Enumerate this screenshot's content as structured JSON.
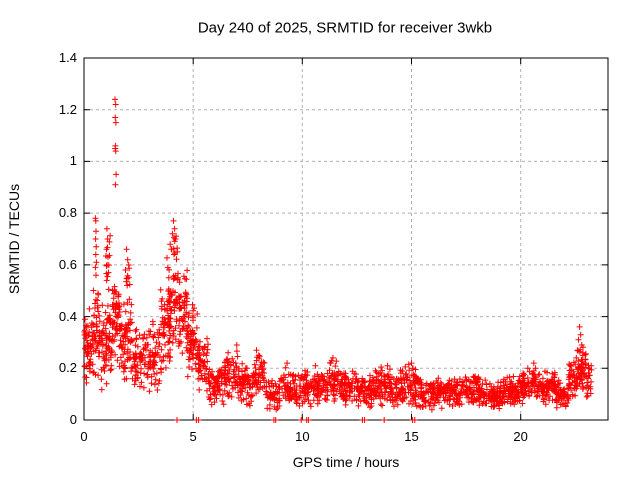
{
  "chart_data": {
    "type": "scatter",
    "title": "Day 240 of 2025, SRMTID for receiver 3wkb",
    "xlabel": "GPS time / hours",
    "ylabel": "SRMTID / TECUs",
    "xlim": [
      0,
      24
    ],
    "ylim": [
      0,
      1.4
    ],
    "x_ticks": [
      0,
      5,
      10,
      15,
      20
    ],
    "y_ticks": [
      0,
      0.2,
      0.4,
      0.6,
      0.8,
      1,
      1.2,
      1.4
    ],
    "grid": "dashed",
    "legend": "none",
    "marker": {
      "symbol": "plus",
      "color": "#ff0000",
      "size": 7
    },
    "grid_color": "#b0b0b0",
    "axis_color": "#000000",
    "background_color": "#ffffff",
    "seed": 42,
    "points": [
      [
        1.42,
        1.24
      ],
      [
        1.45,
        1.22
      ],
      [
        1.43,
        1.17
      ],
      [
        1.46,
        1.15
      ],
      [
        1.44,
        1.06
      ],
      [
        1.45,
        1.04
      ],
      [
        1.43,
        1.05
      ],
      [
        1.47,
        0.95
      ],
      [
        1.44,
        0.91
      ],
      [
        0.52,
        0.78
      ],
      [
        0.54,
        0.77
      ],
      [
        0.55,
        0.73
      ],
      [
        0.53,
        0.7
      ],
      [
        0.56,
        0.67
      ],
      [
        0.54,
        0.64
      ],
      [
        0.57,
        0.61
      ],
      [
        0.52,
        0.59
      ],
      [
        0.55,
        0.56
      ],
      [
        1.05,
        0.74
      ],
      [
        1.08,
        0.7
      ],
      [
        1.03,
        0.66
      ],
      [
        1.1,
        0.63
      ],
      [
        1.06,
        0.6
      ],
      [
        1.12,
        0.57
      ],
      [
        1.04,
        0.54
      ],
      [
        1.95,
        0.66
      ],
      [
        2.0,
        0.62
      ],
      [
        1.9,
        0.58
      ],
      [
        2.05,
        0.55
      ],
      [
        1.98,
        0.52
      ],
      [
        4.1,
        0.77
      ],
      [
        4.15,
        0.74
      ],
      [
        4.05,
        0.72
      ],
      [
        4.2,
        0.7
      ],
      [
        3.95,
        0.68
      ],
      [
        4.0,
        0.66
      ],
      [
        4.12,
        0.64
      ],
      [
        22.7,
        0.36
      ],
      [
        22.75,
        0.33
      ],
      [
        22.65,
        0.31
      ],
      [
        22.8,
        0.29
      ],
      [
        22.6,
        0.27
      ],
      [
        22.85,
        0.25
      ],
      [
        22.55,
        0.24
      ],
      [
        7.0,
        0.29
      ],
      [
        6.6,
        0.26
      ],
      [
        7.9,
        0.27
      ],
      [
        8.0,
        0.25
      ],
      [
        9.3,
        0.22
      ],
      [
        11.4,
        0.24
      ],
      [
        11.3,
        0.22
      ],
      [
        13.9,
        0.21
      ],
      [
        15.0,
        0.22
      ],
      [
        15.05,
        0.2
      ],
      [
        20.6,
        0.22
      ],
      [
        10.6,
        0.21
      ],
      [
        4.26,
        0.0
      ],
      [
        5.15,
        0.0
      ],
      [
        5.25,
        0.0
      ],
      [
        8.7,
        0.0
      ],
      [
        8.78,
        0.0
      ],
      [
        9.95,
        0.0
      ],
      [
        10.2,
        0.0
      ],
      [
        10.28,
        0.0
      ],
      [
        12.75,
        0.0
      ],
      [
        12.85,
        0.0
      ],
      [
        13.75,
        0.0
      ],
      [
        15.05,
        0.0
      ],
      [
        15.15,
        0.0
      ]
    ],
    "bands": [
      {
        "x0": 0.02,
        "x1": 0.35,
        "n": 45,
        "lo": 0.1,
        "hi": 0.45
      },
      {
        "x0": 0.35,
        "x1": 0.75,
        "n": 55,
        "lo": 0.15,
        "hi": 0.52
      },
      {
        "x0": 0.75,
        "x1": 1.3,
        "n": 70,
        "lo": 0.1,
        "hi": 0.48
      },
      {
        "x0": 1.0,
        "x1": 1.2,
        "n": 10,
        "lo": 0.45,
        "hi": 0.72
      },
      {
        "x0": 1.3,
        "x1": 1.6,
        "n": 45,
        "lo": 0.22,
        "hi": 0.58
      },
      {
        "x0": 1.6,
        "x1": 2.2,
        "n": 75,
        "lo": 0.12,
        "hi": 0.5
      },
      {
        "x0": 1.85,
        "x1": 2.1,
        "n": 8,
        "lo": 0.46,
        "hi": 0.64
      },
      {
        "x0": 2.2,
        "x1": 2.9,
        "n": 65,
        "lo": 0.08,
        "hi": 0.36
      },
      {
        "x0": 2.9,
        "x1": 3.5,
        "n": 60,
        "lo": 0.1,
        "hi": 0.4
      },
      {
        "x0": 3.5,
        "x1": 3.95,
        "n": 55,
        "lo": 0.15,
        "hi": 0.55
      },
      {
        "x0": 3.8,
        "x1": 4.3,
        "n": 55,
        "lo": 0.25,
        "hi": 0.68
      },
      {
        "x0": 4.0,
        "x1": 4.3,
        "n": 10,
        "lo": 0.58,
        "hi": 0.76
      },
      {
        "x0": 4.3,
        "x1": 4.75,
        "n": 60,
        "lo": 0.22,
        "hi": 0.62
      },
      {
        "x0": 4.75,
        "x1": 5.2,
        "n": 55,
        "lo": 0.15,
        "hi": 0.45
      },
      {
        "x0": 5.2,
        "x1": 5.7,
        "n": 55,
        "lo": 0.1,
        "hi": 0.33
      },
      {
        "x0": 5.7,
        "x1": 6.4,
        "n": 65,
        "lo": 0.05,
        "hi": 0.23
      },
      {
        "x0": 6.4,
        "x1": 7.1,
        "n": 65,
        "lo": 0.06,
        "hi": 0.28
      },
      {
        "x0": 7.1,
        "x1": 7.7,
        "n": 55,
        "lo": 0.05,
        "hi": 0.22
      },
      {
        "x0": 7.7,
        "x1": 8.3,
        "n": 55,
        "lo": 0.06,
        "hi": 0.26
      },
      {
        "x0": 8.3,
        "x1": 9.0,
        "n": 55,
        "lo": 0.03,
        "hi": 0.17
      },
      {
        "x0": 9.0,
        "x1": 9.7,
        "n": 60,
        "lo": 0.05,
        "hi": 0.21
      },
      {
        "x0": 9.7,
        "x1": 10.5,
        "n": 65,
        "lo": 0.04,
        "hi": 0.2
      },
      {
        "x0": 10.5,
        "x1": 11.2,
        "n": 65,
        "lo": 0.05,
        "hi": 0.19
      },
      {
        "x0": 11.2,
        "x1": 11.8,
        "n": 55,
        "lo": 0.06,
        "hi": 0.24
      },
      {
        "x0": 11.8,
        "x1": 12.5,
        "n": 65,
        "lo": 0.05,
        "hi": 0.2
      },
      {
        "x0": 12.5,
        "x1": 13.2,
        "n": 65,
        "lo": 0.04,
        "hi": 0.18
      },
      {
        "x0": 13.2,
        "x1": 14.0,
        "n": 70,
        "lo": 0.05,
        "hi": 0.21
      },
      {
        "x0": 14.0,
        "x1": 14.7,
        "n": 65,
        "lo": 0.04,
        "hi": 0.2
      },
      {
        "x0": 14.7,
        "x1": 15.4,
        "n": 65,
        "lo": 0.04,
        "hi": 0.22
      },
      {
        "x0": 15.4,
        "x1": 16.2,
        "n": 75,
        "lo": 0.03,
        "hi": 0.16
      },
      {
        "x0": 16.2,
        "x1": 17.2,
        "n": 90,
        "lo": 0.04,
        "hi": 0.17
      },
      {
        "x0": 17.2,
        "x1": 18.2,
        "n": 90,
        "lo": 0.05,
        "hi": 0.19
      },
      {
        "x0": 18.2,
        "x1": 19.2,
        "n": 90,
        "lo": 0.04,
        "hi": 0.16
      },
      {
        "x0": 19.2,
        "x1": 20.0,
        "n": 80,
        "lo": 0.05,
        "hi": 0.18
      },
      {
        "x0": 20.0,
        "x1": 20.9,
        "n": 80,
        "lo": 0.06,
        "hi": 0.22
      },
      {
        "x0": 20.9,
        "x1": 21.6,
        "n": 70,
        "lo": 0.05,
        "hi": 0.19
      },
      {
        "x0": 21.6,
        "x1": 22.2,
        "n": 60,
        "lo": 0.04,
        "hi": 0.16
      },
      {
        "x0": 22.2,
        "x1": 22.6,
        "n": 40,
        "lo": 0.08,
        "hi": 0.25
      },
      {
        "x0": 22.6,
        "x1": 23.0,
        "n": 50,
        "lo": 0.1,
        "hi": 0.31
      },
      {
        "x0": 23.0,
        "x1": 23.25,
        "n": 22,
        "lo": 0.08,
        "hi": 0.23
      }
    ]
  }
}
